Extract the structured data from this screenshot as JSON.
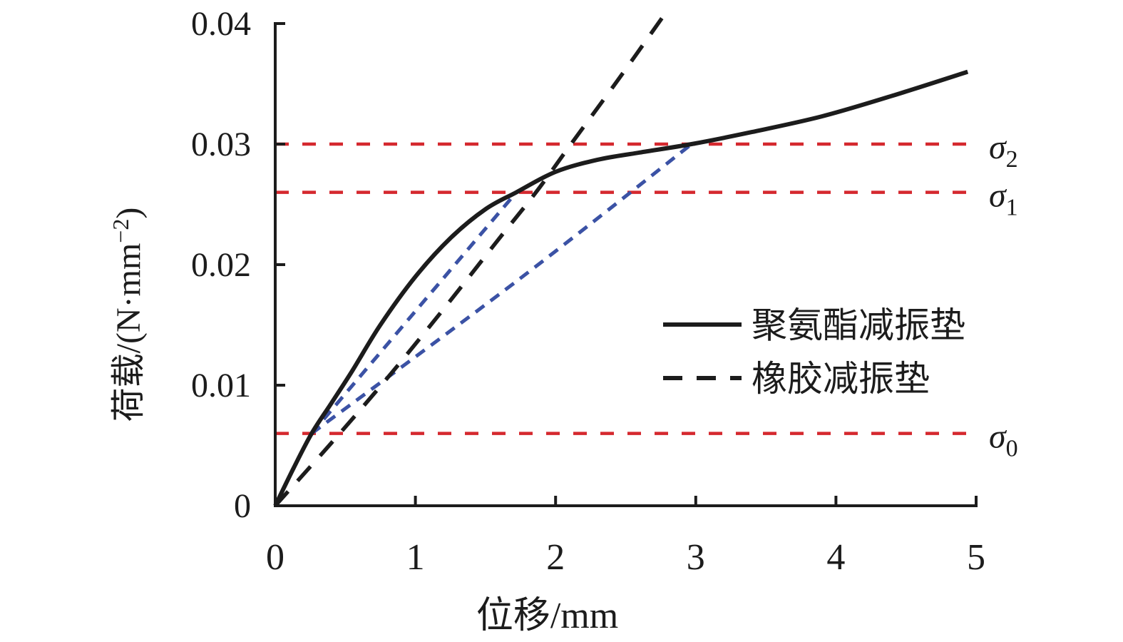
{
  "chart_data": {
    "type": "line",
    "title": "",
    "xlabel": "位移/mm",
    "ylabel_main": "荷载/(N·mm",
    "ylabel_sup": "−2",
    "ylabel_close": ")",
    "xlim": [
      0,
      5
    ],
    "ylim": [
      0,
      0.04
    ],
    "x_ticks": [
      0,
      1,
      2,
      3,
      4,
      5
    ],
    "y_ticks": [
      0,
      0.01,
      0.02,
      0.03,
      0.04
    ],
    "y_tick_labels": [
      "0",
      "0.01",
      "0.02",
      "0.03",
      "0.04"
    ],
    "grid": false,
    "legend_position": "right-middle",
    "axis_color": "#1c1c1c",
    "series": [
      {
        "name": "聚氨酯减振垫",
        "style": "solid",
        "color": "#1c1c1c",
        "width": 6,
        "points": [
          [
            0,
            0
          ],
          [
            0.13,
            0.0031
          ],
          [
            0.26,
            0.006
          ],
          [
            0.4,
            0.0085
          ],
          [
            0.55,
            0.0112
          ],
          [
            0.75,
            0.015
          ],
          [
            1.0,
            0.019
          ],
          [
            1.25,
            0.0222
          ],
          [
            1.5,
            0.0246
          ],
          [
            1.72,
            0.026
          ],
          [
            2.0,
            0.0277
          ],
          [
            2.3,
            0.0287
          ],
          [
            2.6,
            0.0293
          ],
          [
            2.97,
            0.03
          ],
          [
            3.4,
            0.031
          ],
          [
            3.9,
            0.0323
          ],
          [
            4.4,
            0.034
          ],
          [
            4.94,
            0.036
          ]
        ]
      },
      {
        "name": "橡胶减振垫",
        "style": "dashed",
        "color": "#1c1c1c",
        "width": 5.5,
        "dash": "27 20",
        "points": [
          [
            0,
            0
          ],
          [
            0.4,
            0.0052
          ],
          [
            0.8,
            0.0106
          ],
          [
            1.2,
            0.0163
          ],
          [
            1.6,
            0.0222
          ],
          [
            1.86,
            0.026
          ],
          [
            2.11,
            0.03
          ],
          [
            2.45,
            0.0354
          ],
          [
            2.78,
            0.0408
          ]
        ]
      }
    ],
    "secant_lines": [
      {
        "name": "secant-sigma0-to-sigma1",
        "color": "#3b52a5",
        "width": 5,
        "dash": "15 11",
        "points": [
          [
            0.26,
            0.006
          ],
          [
            1.72,
            0.026
          ]
        ]
      },
      {
        "name": "secant-sigma0-to-sigma2",
        "color": "#3b52a5",
        "width": 5,
        "dash": "15 11",
        "points": [
          [
            0.26,
            0.006
          ],
          [
            1.73,
            0.0187
          ],
          [
            2.97,
            0.03
          ]
        ]
      }
    ],
    "reference_lines": [
      {
        "symbol": "σ",
        "sub": "2",
        "y": 0.03,
        "color": "#d5282e"
      },
      {
        "symbol": "σ",
        "sub": "1",
        "y": 0.026,
        "color": "#d5282e"
      },
      {
        "symbol": "σ",
        "sub": "0",
        "y": 0.006,
        "color": "#d5282e"
      }
    ],
    "legend": [
      {
        "label": "聚氨酯减振垫",
        "style": "solid"
      },
      {
        "label": "橡胶减振垫",
        "style": "dashed"
      }
    ]
  }
}
